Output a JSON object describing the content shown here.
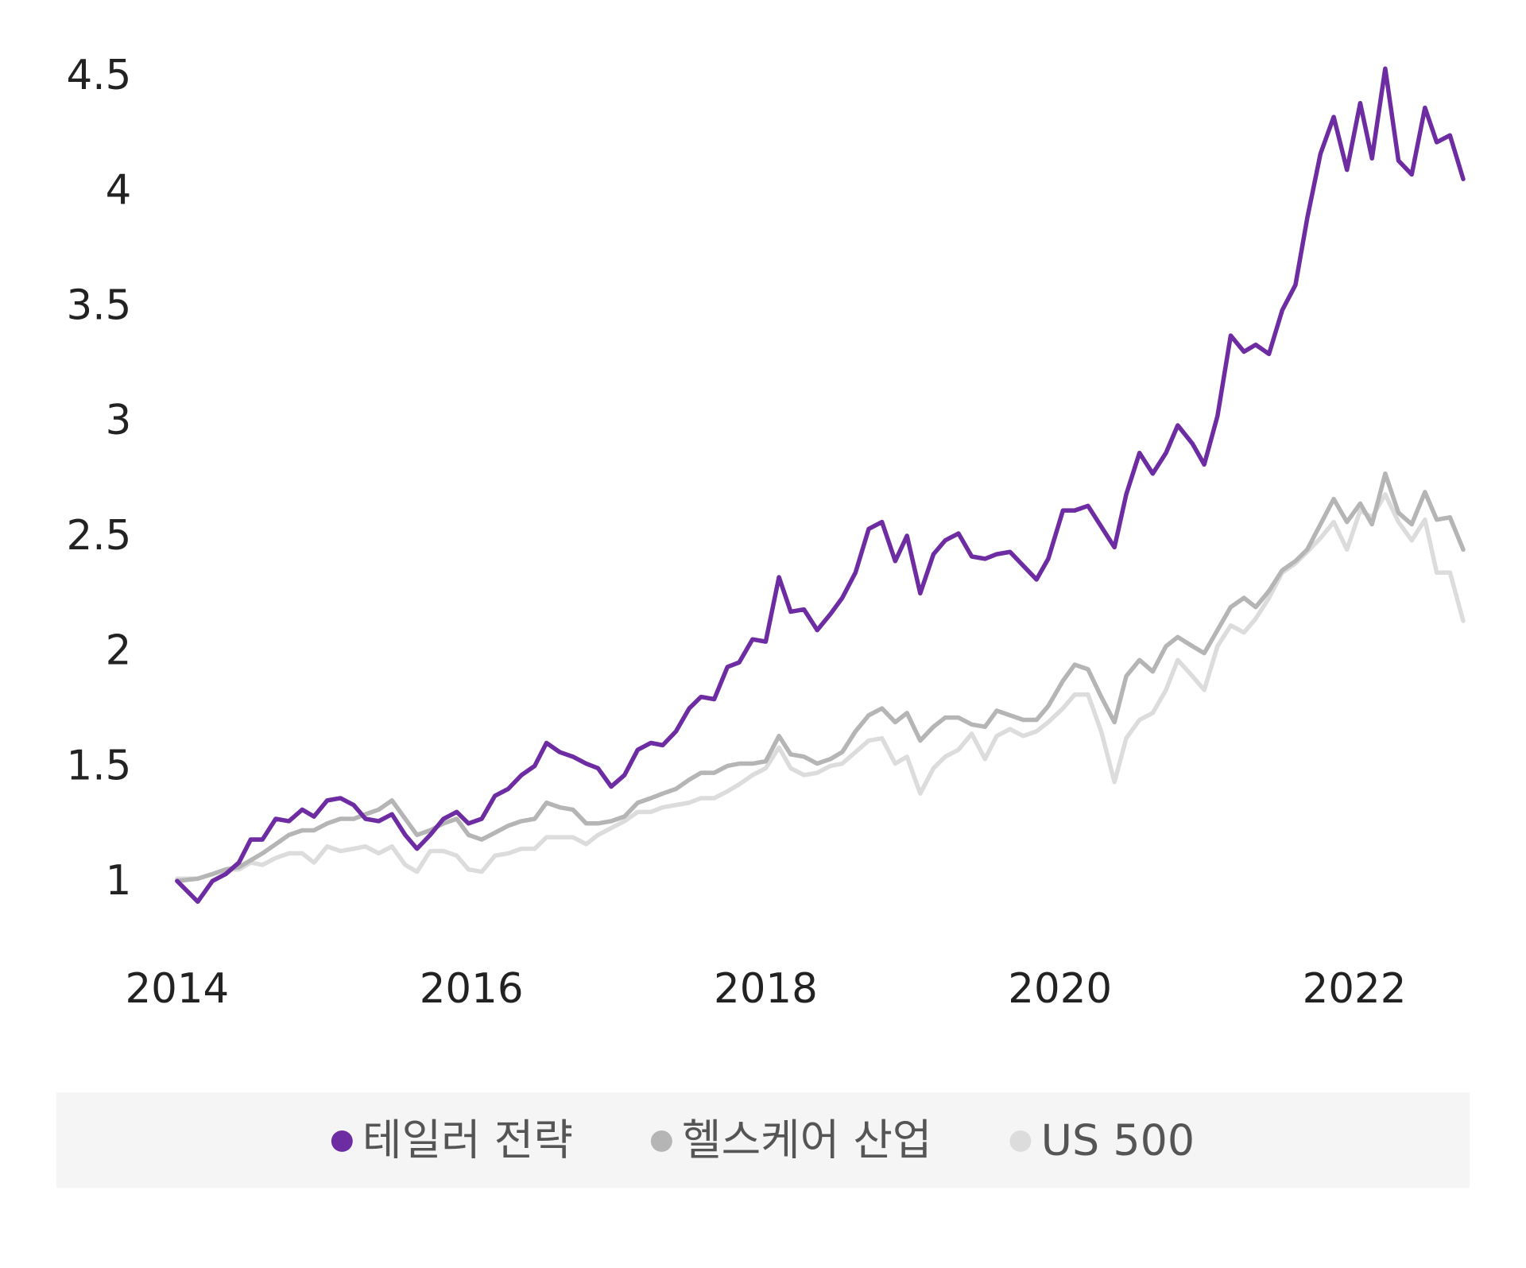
{
  "chart_data": {
    "type": "line",
    "x": [
      2014.0,
      2014.14,
      2014.24,
      2014.33,
      2014.42,
      2014.5,
      2014.58,
      2014.67,
      2014.76,
      2014.85,
      2014.93,
      2015.02,
      2015.11,
      2015.2,
      2015.28,
      2015.37,
      2015.46,
      2015.55,
      2015.63,
      2015.72,
      2015.81,
      2015.9,
      2015.98,
      2016.07,
      2016.16,
      2016.25,
      2016.34,
      2016.43,
      2016.51,
      2016.6,
      2016.69,
      2016.78,
      2016.86,
      2016.95,
      2017.04,
      2017.13,
      2017.22,
      2017.3,
      2017.39,
      2017.48,
      2017.56,
      2017.65,
      2017.74,
      2017.82,
      2017.91,
      2018.0,
      2018.09,
      2018.17,
      2018.26,
      2018.35,
      2018.44,
      2018.52,
      2018.61,
      2018.7,
      2018.79,
      2018.88,
      2018.96,
      2019.05,
      2019.14,
      2019.22,
      2019.31,
      2019.4,
      2019.49,
      2019.57,
      2019.66,
      2019.75,
      2019.84,
      2019.92,
      2020.02,
      2020.1,
      2020.19,
      2020.28,
      2020.37,
      2020.45,
      2020.54,
      2020.63,
      2020.72,
      2020.8,
      2020.9,
      2020.98,
      2021.07,
      2021.16,
      2021.25,
      2021.33,
      2021.42,
      2021.51,
      2021.6,
      2021.68,
      2021.77,
      2021.86,
      2021.95,
      2022.04,
      2022.12,
      2022.21,
      2022.3,
      2022.39,
      2022.48,
      2022.56,
      2022.65,
      2022.74
    ],
    "series": [
      {
        "name": "테일러 전략",
        "color": "#6e2ca3",
        "values": [
          1.01,
          0.92,
          1.01,
          1.04,
          1.09,
          1.19,
          1.19,
          1.28,
          1.27,
          1.32,
          1.29,
          1.36,
          1.37,
          1.34,
          1.28,
          1.27,
          1.3,
          1.21,
          1.15,
          1.21,
          1.28,
          1.31,
          1.26,
          1.28,
          1.38,
          1.41,
          1.47,
          1.51,
          1.61,
          1.57,
          1.55,
          1.52,
          1.5,
          1.42,
          1.47,
          1.58,
          1.61,
          1.6,
          1.66,
          1.76,
          1.81,
          1.8,
          1.94,
          1.96,
          2.06,
          2.05,
          2.33,
          2.18,
          2.19,
          2.1,
          2.17,
          2.24,
          2.35,
          2.54,
          2.57,
          2.4,
          2.51,
          2.26,
          2.43,
          2.49,
          2.52,
          2.42,
          2.41,
          2.43,
          2.44,
          2.38,
          2.32,
          2.41,
          2.62,
          2.62,
          2.64,
          2.55,
          2.46,
          2.69,
          2.87,
          2.78,
          2.87,
          2.99,
          2.91,
          2.82,
          3.03,
          3.38,
          3.31,
          3.34,
          3.3,
          3.49,
          3.6,
          3.89,
          4.17,
          4.33,
          4.1,
          4.39,
          4.15,
          4.54,
          4.14,
          4.08,
          4.37,
          4.22,
          4.25,
          4.06
        ]
      },
      {
        "name": "헬스케어 산업",
        "color": "#b5b5b5",
        "values": [
          1.01,
          1.02,
          1.04,
          1.06,
          1.07,
          1.1,
          1.13,
          1.17,
          1.21,
          1.23,
          1.23,
          1.26,
          1.28,
          1.28,
          1.3,
          1.32,
          1.36,
          1.28,
          1.21,
          1.23,
          1.26,
          1.28,
          1.21,
          1.19,
          1.22,
          1.25,
          1.27,
          1.28,
          1.35,
          1.33,
          1.32,
          1.26,
          1.26,
          1.27,
          1.29,
          1.35,
          1.37,
          1.39,
          1.41,
          1.45,
          1.48,
          1.48,
          1.51,
          1.52,
          1.52,
          1.53,
          1.64,
          1.56,
          1.55,
          1.52,
          1.54,
          1.57,
          1.66,
          1.73,
          1.76,
          1.7,
          1.74,
          1.62,
          1.68,
          1.72,
          1.72,
          1.69,
          1.68,
          1.75,
          1.73,
          1.71,
          1.71,
          1.77,
          1.88,
          1.95,
          1.93,
          1.81,
          1.7,
          1.9,
          1.97,
          1.92,
          2.03,
          2.07,
          2.03,
          2.0,
          2.1,
          2.2,
          2.24,
          2.2,
          2.27,
          2.36,
          2.4,
          2.45,
          2.56,
          2.67,
          2.57,
          2.65,
          2.56,
          2.78,
          2.61,
          2.56,
          2.7,
          2.58,
          2.59,
          2.45
        ]
      },
      {
        "name": "US 500",
        "color": "#dcdcdc",
        "values": [
          1.02,
          1.02,
          1.04,
          1.06,
          1.06,
          1.09,
          1.08,
          1.11,
          1.13,
          1.13,
          1.09,
          1.16,
          1.14,
          1.15,
          1.16,
          1.13,
          1.16,
          1.08,
          1.05,
          1.14,
          1.14,
          1.12,
          1.06,
          1.05,
          1.12,
          1.13,
          1.15,
          1.15,
          1.2,
          1.2,
          1.2,
          1.17,
          1.21,
          1.24,
          1.27,
          1.31,
          1.31,
          1.33,
          1.34,
          1.35,
          1.37,
          1.37,
          1.4,
          1.43,
          1.47,
          1.5,
          1.59,
          1.5,
          1.47,
          1.48,
          1.51,
          1.52,
          1.57,
          1.62,
          1.63,
          1.52,
          1.55,
          1.39,
          1.5,
          1.55,
          1.58,
          1.65,
          1.54,
          1.64,
          1.67,
          1.64,
          1.66,
          1.7,
          1.76,
          1.82,
          1.82,
          1.66,
          1.44,
          1.63,
          1.71,
          1.74,
          1.84,
          1.97,
          1.9,
          1.84,
          2.03,
          2.12,
          2.09,
          2.15,
          2.24,
          2.35,
          2.39,
          2.44,
          2.5,
          2.57,
          2.45,
          2.62,
          2.59,
          2.69,
          2.57,
          2.49,
          2.58,
          2.35,
          2.35,
          2.14
        ]
      }
    ],
    "xlim": [
      2014,
      2022.75
    ],
    "xticks": [
      2014,
      2016,
      2018,
      2020,
      2022
    ],
    "ylim": [
      0.7,
      4.6
    ],
    "yticks": [
      1,
      1.5,
      2,
      2.5,
      3,
      3.5,
      4,
      4.5
    ],
    "grid": false,
    "legend": "bottom"
  }
}
